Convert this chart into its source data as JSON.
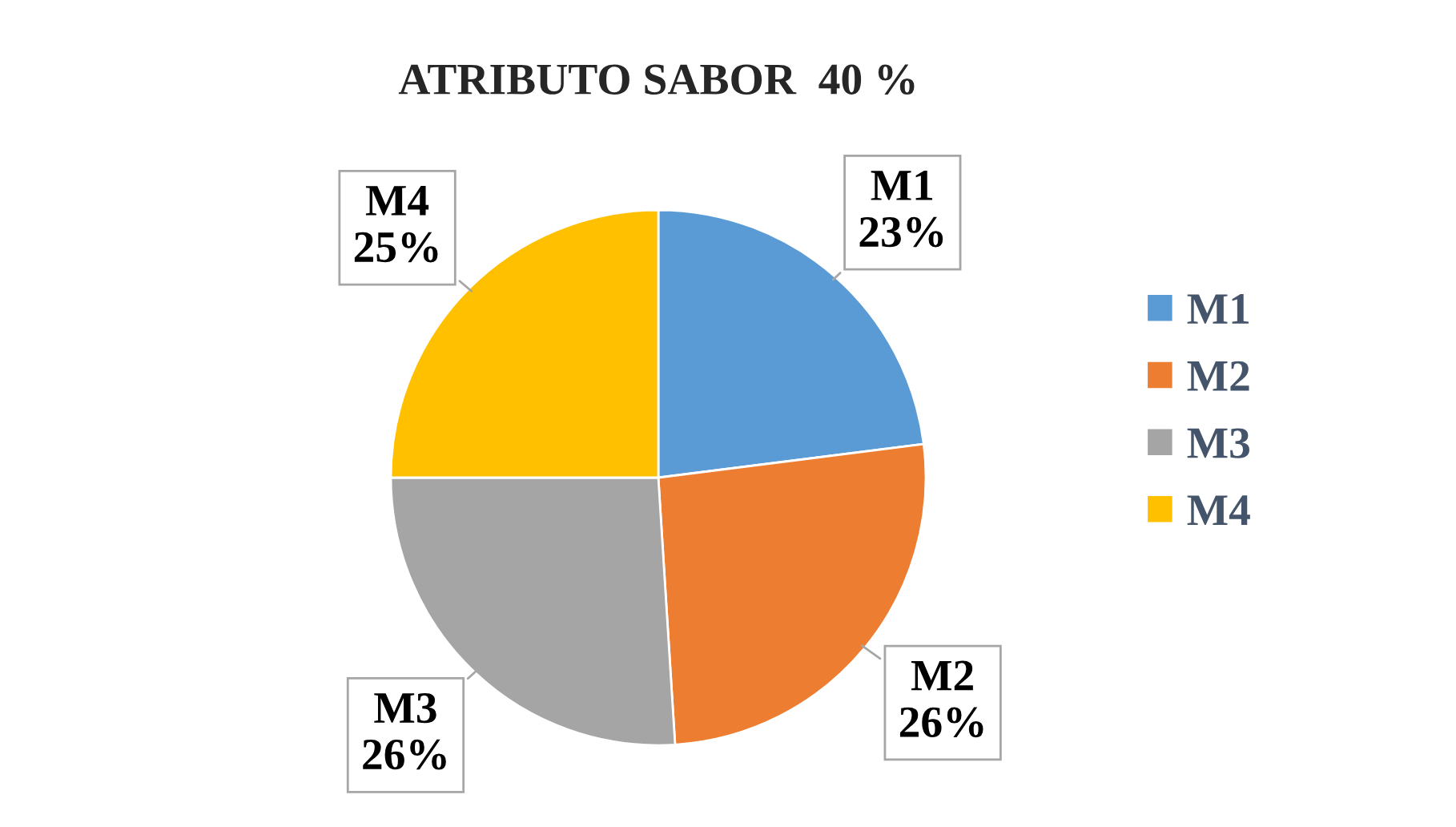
{
  "chart_data": {
    "type": "pie",
    "title": "ATRIBUTO SABOR  40 %",
    "categories": [
      "M1",
      "M2",
      "M3",
      "M4"
    ],
    "values": [
      23,
      26,
      26,
      25
    ],
    "colors": [
      "#5b9bd5",
      "#ed7d31",
      "#a5a5a5",
      "#ffc000"
    ],
    "value_labels": [
      "23%",
      "26%",
      "26%",
      "25%"
    ],
    "legend": "right"
  }
}
